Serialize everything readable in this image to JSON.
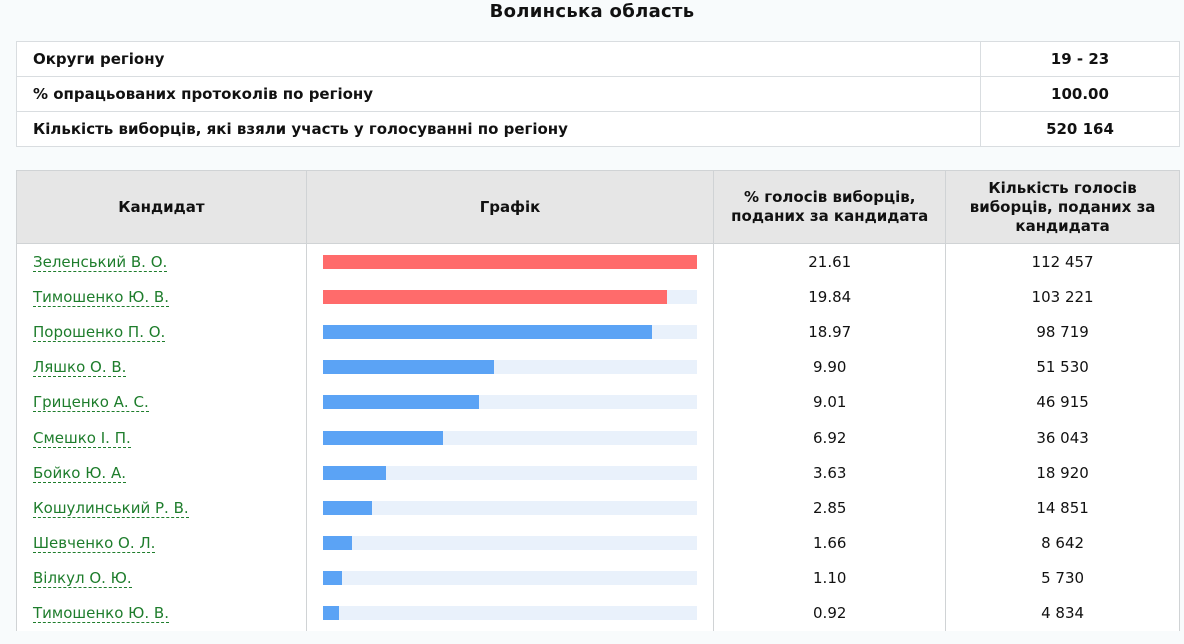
{
  "region_title": "Волинська область",
  "summary": [
    {
      "label": "Округи регіону",
      "value": "19 - 23"
    },
    {
      "label": "% опрацьованих протоколів по регіону",
      "value": "100.00"
    },
    {
      "label": "Кількість виборців, які взяли участь у голосуванні по регіону",
      "value": "520 164"
    }
  ],
  "headers": {
    "candidate": "Кандидат",
    "chart": "Графік",
    "percent": "% голосів виборців, поданих за кандидата",
    "votes": "Кількість голосів виборців, поданих за кандидата"
  },
  "colors": {
    "leader": "#ff6b6b",
    "other": "#5ba3f5",
    "track": "#e9f1fb",
    "link": "#1e7d2c"
  },
  "rows": [
    {
      "name": "Зеленський В. О.",
      "percent": "21.61",
      "votes": "112 457",
      "share": 1.0,
      "leader": true
    },
    {
      "name": "Тимошенко Ю. В.",
      "percent": "19.84",
      "votes": "103 221",
      "share": 0.918,
      "leader": true
    },
    {
      "name": "Порошенко П. О.",
      "percent": "18.97",
      "votes": "98 719",
      "share": 0.878,
      "leader": false
    },
    {
      "name": "Ляшко О. В.",
      "percent": "9.90",
      "votes": "51 530",
      "share": 0.458,
      "leader": false
    },
    {
      "name": "Гриценко А. С.",
      "percent": "9.01",
      "votes": "46 915",
      "share": 0.417,
      "leader": false
    },
    {
      "name": "Смешко І. П.",
      "percent": "6.92",
      "votes": "36 043",
      "share": 0.32,
      "leader": false
    },
    {
      "name": "Бойко Ю. А.",
      "percent": "3.63",
      "votes": "18 920",
      "share": 0.168,
      "leader": false
    },
    {
      "name": "Кошулинський Р. В.",
      "percent": "2.85",
      "votes": "14 851",
      "share": 0.132,
      "leader": false
    },
    {
      "name": "Шевченко О. Л.",
      "percent": "1.66",
      "votes": "8 642",
      "share": 0.077,
      "leader": false
    },
    {
      "name": "Вілкул О. Ю.",
      "percent": "1.10",
      "votes": "5 730",
      "share": 0.051,
      "leader": false
    },
    {
      "name": "Тимошенко Ю. В.",
      "percent": "0.92",
      "votes": "4 834",
      "share": 0.043,
      "leader": false
    }
  ]
}
